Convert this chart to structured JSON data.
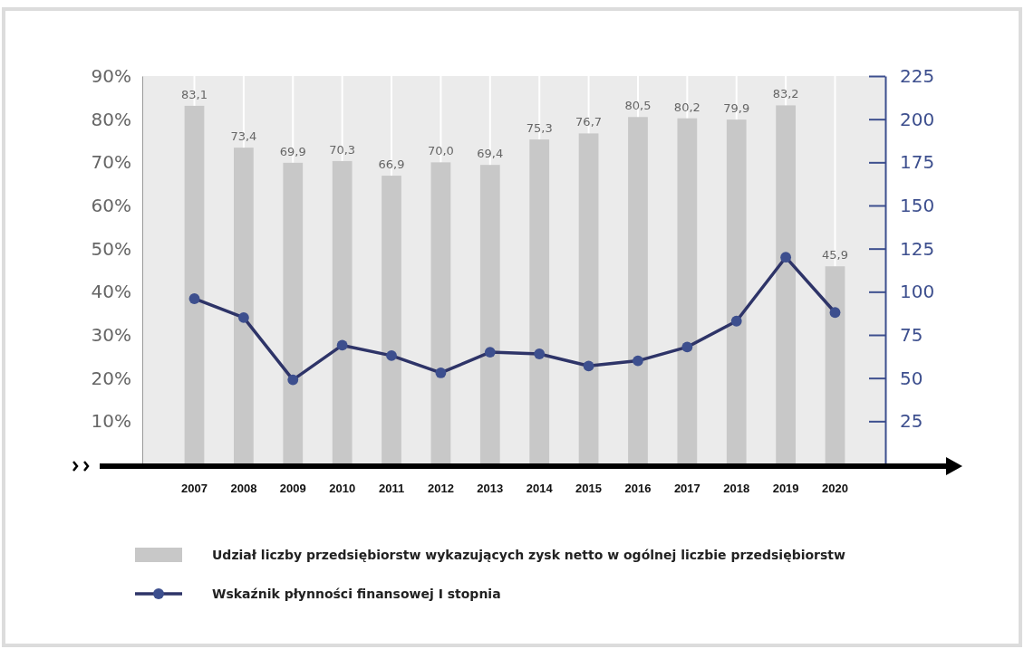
{
  "chart_data": {
    "type": "bar",
    "categories": [
      "2007",
      "2008",
      "2009",
      "2010",
      "2011",
      "2012",
      "2013",
      "2014",
      "2015",
      "2016",
      "2017",
      "2018",
      "2019",
      "2020"
    ],
    "series": [
      {
        "name": "Udział liczby przedsiębiorstw wykazujących zysk netto w ogólnej liczbie przedsiębiorstw",
        "color": "#c8c8c8",
        "values": [
          83.1,
          73.4,
          69.9,
          70.3,
          66.9,
          70.0,
          69.4,
          75.3,
          76.7,
          80.5,
          80.2,
          79.9,
          83.2,
          45.9
        ],
        "value_labels": [
          "83,1",
          "73,4",
          "69,9",
          "70,3",
          "66,9",
          "70,0",
          "69,4",
          "75,3",
          "76,7",
          "80,5",
          "80,2",
          "79,9",
          "83,2",
          "45,9"
        ]
      },
      {
        "name": "Wskaźnik płynności finansowej I stopnia",
        "type": "line",
        "axis": "y2",
        "color": "#2e3468",
        "marker": "circle",
        "values": [
          96,
          85,
          49,
          69,
          63,
          53,
          65,
          64,
          57,
          60,
          68,
          83,
          120,
          88
        ]
      }
    ],
    "ylim": [
      0,
      90
    ],
    "yticks": [
      {
        "value": 10,
        "label": "10%"
      },
      {
        "value": 20,
        "label": "20%"
      },
      {
        "value": 30,
        "label": "30%"
      },
      {
        "value": 40,
        "label": "40%"
      },
      {
        "value": 50,
        "label": "50%"
      },
      {
        "value": 60,
        "label": "60%"
      },
      {
        "value": 70,
        "label": "70%"
      },
      {
        "value": 80,
        "label": "80%"
      },
      {
        "value": 90,
        "label": "90%"
      }
    ],
    "y2lim": [
      0,
      225
    ],
    "y2ticks": [
      25,
      50,
      75,
      100,
      125,
      150,
      175,
      200,
      225
    ],
    "grid": "x",
    "legend": "bottom"
  }
}
